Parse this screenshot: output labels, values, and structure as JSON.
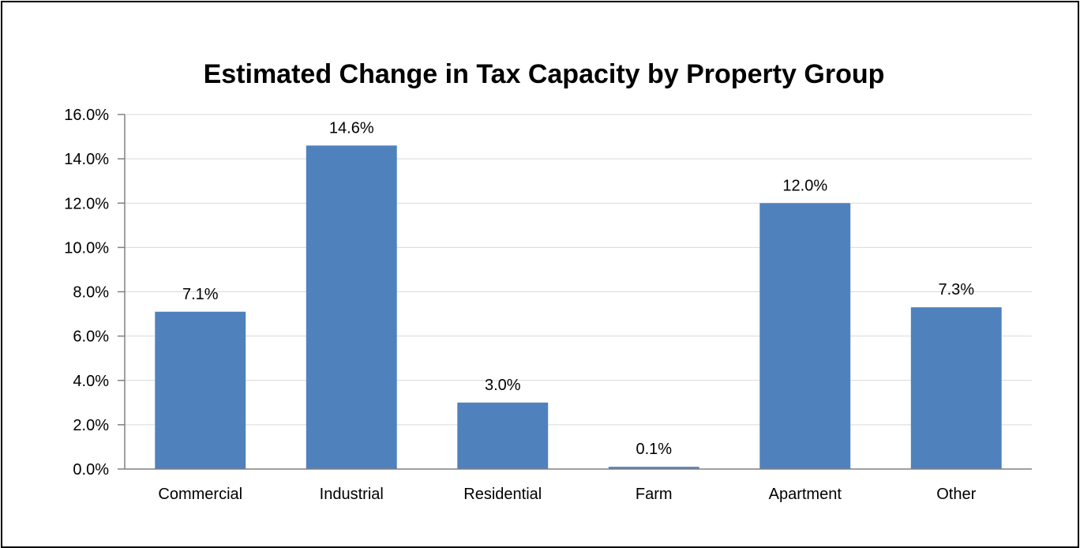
{
  "colors": {
    "bar": "#4f81bd",
    "gridline": "#d9d9d9",
    "axis": "#808080",
    "text": "#000000"
  },
  "chart_data": {
    "type": "bar",
    "title": "Estimated Change in Tax Capacity by Property Group",
    "xlabel": "",
    "ylabel": "",
    "categories": [
      "Commercial",
      "Industrial",
      "Residential",
      "Farm",
      "Apartment",
      "Other"
    ],
    "values": [
      7.1,
      14.6,
      3.0,
      0.1,
      12.0,
      7.3
    ],
    "data_labels": [
      "7.1%",
      "14.6%",
      "3.0%",
      "0.1%",
      "12.0%",
      "7.3%"
    ],
    "ylim": [
      0,
      16
    ],
    "yticks": [
      0,
      2,
      4,
      6,
      8,
      10,
      12,
      14,
      16
    ],
    "ytick_labels": [
      "0.0%",
      "2.0%",
      "4.0%",
      "6.0%",
      "8.0%",
      "10.0%",
      "12.0%",
      "14.0%",
      "16.0%"
    ],
    "grid": true,
    "legend": "none"
  }
}
